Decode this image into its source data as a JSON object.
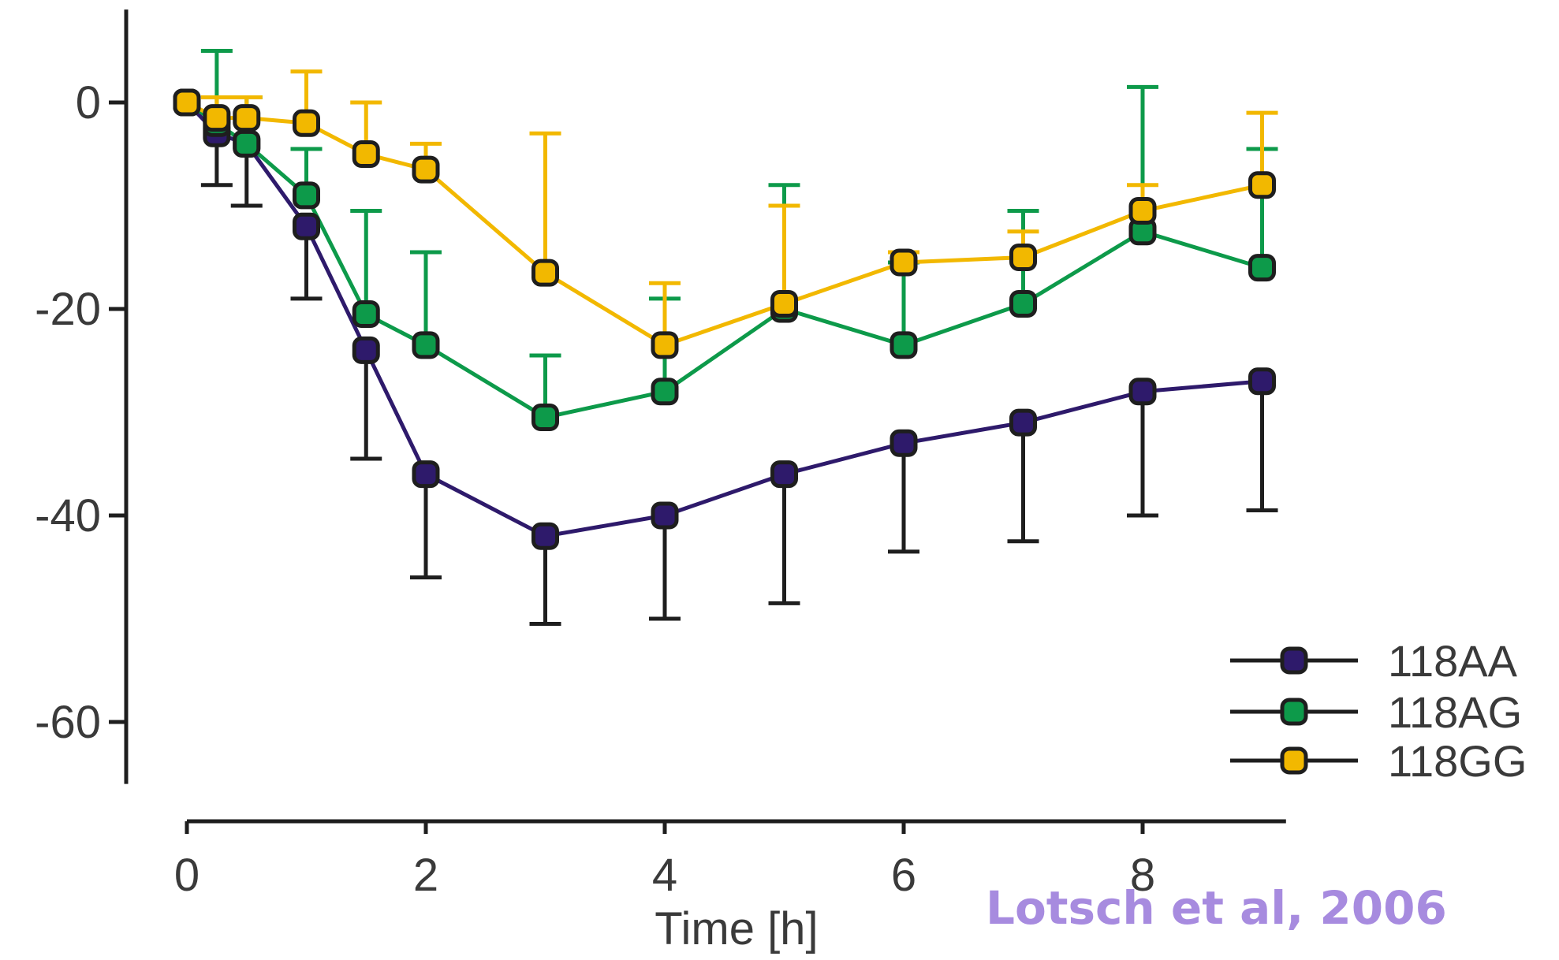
{
  "chart_data": {
    "type": "line",
    "title": "",
    "xlabel": "Time [h]",
    "ylabel": "",
    "xlim": [
      0,
      9.2
    ],
    "ylim": [
      -66,
      9
    ],
    "xticks": [
      0,
      2,
      4,
      6,
      8
    ],
    "yticks": [
      0,
      -20,
      -40,
      -60
    ],
    "xtick_labels": [
      "0",
      "2",
      "4",
      "6",
      "8"
    ],
    "ytick_labels": [
      "0",
      "-20",
      "-40",
      "-60"
    ],
    "grid": false,
    "legend_position": "bottom-right",
    "series": [
      {
        "name": "118AA",
        "color": "#2e1a6b",
        "errorbar_color": "#1e1e1e",
        "errorbar_direction": "down",
        "x": [
          0,
          0.25,
          0.5,
          1,
          1.5,
          2,
          3,
          4,
          5,
          6,
          7,
          8,
          9
        ],
        "y": [
          0,
          -3,
          -4,
          -12,
          -24,
          -36,
          -42,
          -40,
          -36,
          -33,
          -31,
          -28,
          -27
        ],
        "err": [
          0,
          5,
          6,
          7,
          10.5,
          10,
          8.5,
          10,
          12.5,
          10.5,
          11.5,
          12,
          12.5
        ]
      },
      {
        "name": "118AG",
        "color": "#0d9a4a",
        "errorbar_color": "#0d9a4a",
        "errorbar_direction": "up",
        "x": [
          0,
          0.25,
          0.5,
          1,
          1.5,
          2,
          3,
          4,
          5,
          6,
          7,
          8,
          9
        ],
        "y": [
          0,
          -2,
          -4,
          -9,
          -20.5,
          -23.5,
          -30.5,
          -28,
          -20,
          -23.5,
          -19.5,
          -12.5,
          -16
        ],
        "err": [
          0,
          7,
          4.5,
          4.5,
          10,
          9,
          6,
          9,
          12,
          8,
          9,
          14,
          11.5
        ]
      },
      {
        "name": "118GG",
        "color": "#f2b800",
        "errorbar_color": "#f2b800",
        "errorbar_direction": "up",
        "x": [
          0,
          0.25,
          0.5,
          1,
          1.5,
          2,
          3,
          4,
          5,
          6,
          7,
          8,
          9
        ],
        "y": [
          0,
          -1.5,
          -1.5,
          -2,
          -5,
          -6.5,
          -16.5,
          -23.5,
          -19.5,
          -15.5,
          -15,
          -10.5,
          -8
        ],
        "err": [
          0,
          2,
          2,
          5,
          5,
          2.5,
          13.5,
          6,
          9.5,
          1,
          2.5,
          2.5,
          7
        ]
      }
    ]
  },
  "citation": {
    "text": "Lotsch et al, 2006",
    "color": "#a78bdf"
  }
}
